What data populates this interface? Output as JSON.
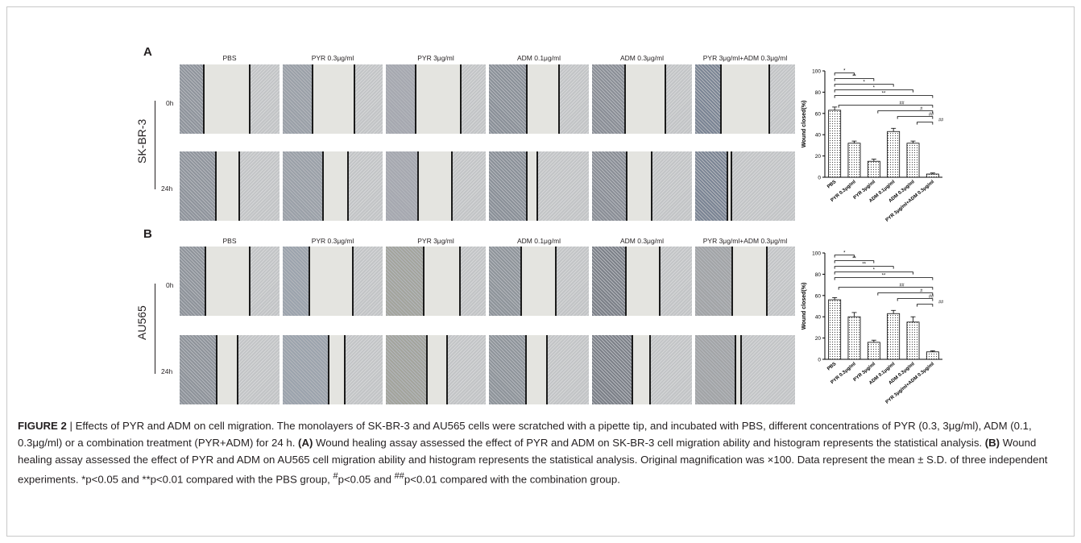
{
  "panels": [
    {
      "letter": "A",
      "cell_line": "SK-BR-3",
      "time_labels": [
        "0h",
        "24h"
      ],
      "columns": [
        "PBS",
        "PYR 0.3μg/ml",
        "PYR 3μg/ml",
        "ADM 0.1μg/ml",
        "ADM 0.3μg/ml",
        "PYR 3μg/ml+ADM 0.3μg/ml"
      ]
    },
    {
      "letter": "B",
      "cell_line": "AU565",
      "time_labels": [
        "0h",
        "24h"
      ],
      "columns": [
        "PBS",
        "PYR 0.3μg/ml",
        "PYR 3μg/ml",
        "ADM 0.1μg/ml",
        "ADM 0.3μg/ml",
        "PYR 3μg/ml+ADM 0.3μg/ml"
      ]
    }
  ],
  "chart_data": [
    {
      "type": "bar",
      "panel": "A",
      "categories": [
        "PBS",
        "PYR 0.3μg/ml",
        "PYR 3μg/ml",
        "ADM 0.1μg/ml",
        "ADM 0.3μg/ml",
        "PYR 3μg/ml+ADM 0.3μg/ml"
      ],
      "values": [
        63,
        32,
        15,
        43,
        32,
        3
      ],
      "errors": [
        3,
        2,
        2,
        3,
        2,
        1
      ],
      "ylabel": "Wound closed(%)",
      "ylim": [
        0,
        100
      ],
      "yticks": [
        0,
        20,
        40,
        60,
        80,
        100
      ],
      "sig_pbs": [
        {
          "to": 1,
          "label": "*"
        },
        {
          "to": 2,
          "label": "**"
        },
        {
          "to": 3,
          "label": "*"
        },
        {
          "to": 4,
          "label": "*"
        },
        {
          "to": 5,
          "label": "**"
        }
      ],
      "sig_combo": [
        {
          "from": 0,
          "label": "##"
        },
        {
          "from": 2,
          "label": "#"
        },
        {
          "from": 3,
          "label": "##"
        },
        {
          "from": 4,
          "label": "##"
        }
      ]
    },
    {
      "type": "bar",
      "panel": "B",
      "categories": [
        "PBS",
        "PYR 0.3μg/ml",
        "PYR 3μg/ml",
        "ADM 0.1μg/ml",
        "ADM 0.3μg/ml",
        "PYR 3μg/ml+ADM 0.3μg/ml"
      ],
      "values": [
        56,
        40,
        16,
        43,
        35,
        7
      ],
      "errors": [
        2,
        4,
        2,
        3,
        5,
        1
      ],
      "ylabel": "Wound closed(%)",
      "ylim": [
        0,
        100
      ],
      "yticks": [
        0,
        20,
        40,
        60,
        80,
        100
      ],
      "sig_pbs": [
        {
          "to": 1,
          "label": "*"
        },
        {
          "to": 2,
          "label": "**"
        },
        {
          "to": 3,
          "label": "**"
        },
        {
          "to": 4,
          "label": "*"
        },
        {
          "to": 5,
          "label": "**"
        }
      ],
      "sig_combo": [
        {
          "from": 0,
          "label": "##"
        },
        {
          "from": 2,
          "label": "#"
        },
        {
          "from": 3,
          "label": "##"
        },
        {
          "from": 4,
          "label": "##"
        }
      ]
    }
  ],
  "caption": {
    "label": "FIGURE 2",
    "separator": " | ",
    "title": "Effects of PYR and ADM on cell migration.",
    "text1": " The monolayers of SK-BR-3 and AU565 cells were scratched with a pipette tip, and incubated with PBS, different concentrations of PYR (0.3, 3μg/ml), ADM (0.1, 0.3μg/ml) or a combination treatment (PYR+ADM) for 24 h. ",
    "ref_a": "(A)",
    "text2": " Wound healing assay assessed the effect of PYR and ADM on SK-BR-3 cell migration ability and histogram represents the statistical analysis. ",
    "ref_b": "(B)",
    "text3": " Wound healing assay assessed the effect of PYR and ADM on AU565 cell migration ability and histogram represents the statistical analysis. Original magnification was ×100. Data represent the mean ± S.D. of three independent experiments. *p<0.05 and **p<0.01 compared with the PBS group, ",
    "hash1": "#",
    "text4": "p<0.05 and ",
    "hash2": "##",
    "text5": "p<0.01 compared with the combination group."
  },
  "colors": {
    "tile_left": "#8d929b",
    "tile_gap": "#e4e4e0",
    "tile_right": "#c2c4c6"
  }
}
